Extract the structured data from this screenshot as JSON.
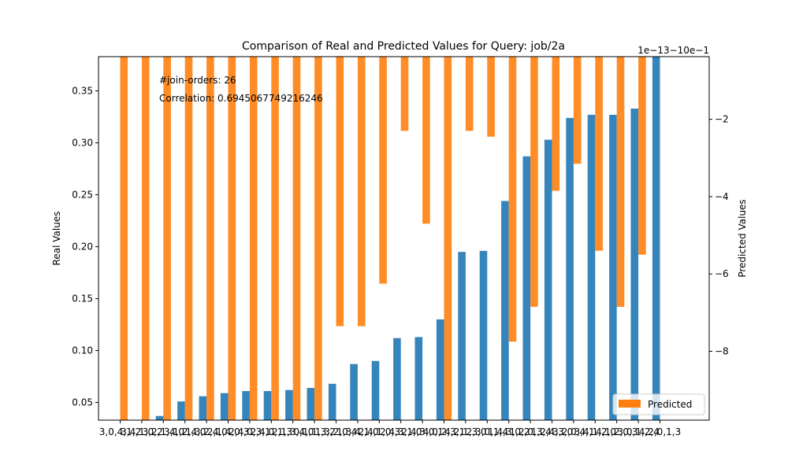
{
  "chart_data": {
    "type": "bar",
    "title": "Comparison of Real and Predicted Values for Query: job/2a",
    "ylabel_left": "Real Values",
    "ylabel_right": "Predicted Values",
    "xlabel": "",
    "ylim_left": [
      0.033,
      0.383
    ],
    "yticks_left": [
      "0.05",
      "0.10",
      "0.15",
      "0.20",
      "0.25",
      "0.30",
      "0.35"
    ],
    "ytick_values_left": [
      0.05,
      0.1,
      0.15,
      0.2,
      0.25,
      0.3,
      0.35
    ],
    "right_axis_offset_label": "1e−13−10e−1",
    "ylim_right": [
      -9.78,
      -0.38
    ],
    "yticks_right": [
      "−8",
      "−6",
      "−4",
      "−2"
    ],
    "ytick_values_right": [
      -8,
      -6,
      -4,
      -2
    ],
    "annotations": [
      "#join-orders: 26",
      "Correlation: 0.6945067749216246"
    ],
    "legend": {
      "placement": "lower right",
      "entries": [
        "Predicted"
      ]
    },
    "categories": [
      "3,0,4,1,2",
      "3,4,1,0,2",
      "3,2,1,4,0",
      "3,1,2,4,0",
      "1,3,2,4,0",
      "2,1,4,0,3",
      "2,4,0,3,1",
      "2,4,0,1,3",
      "2,1,3,4,0",
      "0,1,1,3,2",
      "1,3,2,0,4",
      "1,3,4,1,0",
      "2,4,1,0,3",
      "2,4,3,1,0",
      "2,4,3,0,1",
      "4,0,2,3,1",
      "4,2,1,3,0",
      "2,3,0,1,4",
      "1,4,3,0,2",
      "1,2,0,3,4",
      "1,2,4,3,0",
      "3,2,0,4,1",
      "3,4,1,2,0",
      "4,1,2,0,3",
      "3,0,1,2,4",
      "4,2,0,1,3"
    ],
    "series": [
      {
        "name": "Real",
        "color": "#1f77b4",
        "values": [
          0.033,
          0.033,
          0.037,
          0.051,
          0.056,
          0.059,
          0.061,
          0.061,
          0.062,
          0.064,
          0.068,
          0.087,
          0.09,
          0.112,
          0.113,
          0.13,
          0.195,
          0.196,
          0.244,
          0.287,
          0.303,
          0.324,
          0.327,
          0.327,
          0.333,
          0.383
        ]
      },
      {
        "name": "Predicted",
        "color": "#ff7f0e",
        "values": [
          -9.8,
          -9.8,
          -9.8,
          -9.8,
          -9.8,
          -9.8,
          -9.8,
          -9.8,
          -9.8,
          -9.8,
          -7.35,
          -7.35,
          -6.25,
          -2.3,
          -4.7,
          -9.8,
          -2.3,
          -2.45,
          -7.75,
          -6.85,
          -3.85,
          -3.15,
          -5.4,
          -6.85,
          -5.5,
          -0.38
        ]
      }
    ]
  }
}
